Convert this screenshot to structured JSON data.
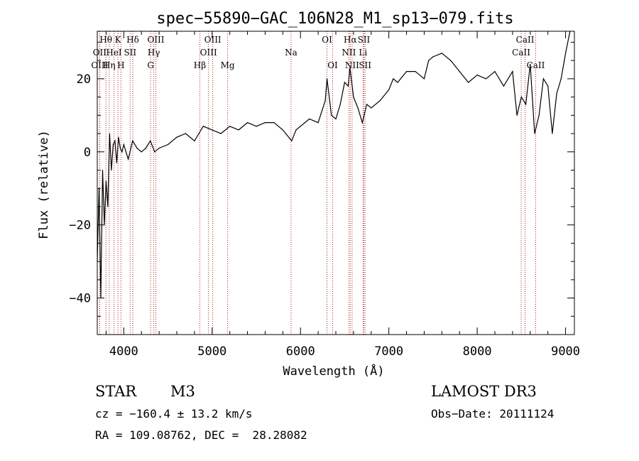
{
  "chart_data": {
    "type": "line",
    "title": "spec−55890−GAC_106N28_M1_sp13−079.fits",
    "xlabel": "Wavelength (Å)",
    "ylabel": "Flux (relative)",
    "xlim": [
      3700,
      9100
    ],
    "ylim": [
      -50,
      33
    ],
    "xticks": [
      4000,
      5000,
      6000,
      7000,
      8000,
      9000
    ],
    "yticks": [
      -40,
      -20,
      0,
      20
    ],
    "ytick_labels": [
      "−40",
      "−20",
      "0",
      "20"
    ],
    "series": [
      {
        "color": "#000000",
        "x": [
          3700,
          3720,
          3740,
          3760,
          3780,
          3800,
          3820,
          3840,
          3860,
          3880,
          3900,
          3920,
          3940,
          3960,
          3980,
          4000,
          4050,
          4100,
          4150,
          4200,
          4250,
          4300,
          4350,
          4400,
          4500,
          4600,
          4700,
          4800,
          4850,
          4900,
          5000,
          5100,
          5200,
          5300,
          5400,
          5500,
          5600,
          5700,
          5800,
          5900,
          5950,
          6000,
          6100,
          6200,
          6280,
          6300,
          6350,
          6400,
          6450,
          6500,
          6540,
          6560,
          6600,
          6650,
          6700,
          6750,
          6800,
          6900,
          7000,
          7050,
          7100,
          7200,
          7300,
          7400,
          7450,
          7500,
          7600,
          7700,
          7800,
          7900,
          8000,
          8100,
          8200,
          8300,
          8400,
          8450,
          8500,
          8550,
          8600,
          8650,
          8700,
          8750,
          8800,
          8850,
          8900,
          8950,
          9000,
          9050
        ],
        "y": [
          -30,
          -10,
          -40,
          -5,
          -20,
          -8,
          -15,
          5,
          -5,
          2,
          3,
          -3,
          4,
          1,
          0,
          2,
          -2,
          3,
          1,
          0,
          1,
          3,
          0,
          1,
          2,
          4,
          5,
          3,
          5,
          7,
          6,
          5,
          7,
          6,
          8,
          7,
          8,
          8,
          6,
          3,
          6,
          7,
          9,
          8,
          14,
          20,
          10,
          9,
          13,
          19,
          18,
          23,
          15,
          12,
          8,
          13,
          12,
          14,
          17,
          20,
          19,
          22,
          22,
          20,
          25,
          26,
          27,
          25,
          22,
          19,
          21,
          20,
          22,
          18,
          22,
          10,
          15,
          13,
          24,
          5,
          10,
          20,
          18,
          5,
          16,
          20,
          27,
          34
        ]
      }
    ],
    "emission_lines": [
      {
        "label": "Hθ",
        "wave": 3798,
        "row": 1
      },
      {
        "label": "K",
        "wave": 3934,
        "row": 1
      },
      {
        "label": "Hδ",
        "wave": 4102,
        "row": 1
      },
      {
        "label": "OIII",
        "wave": 4363,
        "row": 1
      },
      {
        "label": "OIII",
        "wave": 5007,
        "row": 1
      },
      {
        "label": "OI",
        "wave": 6300,
        "row": 1
      },
      {
        "label": "Hα",
        "wave": 6563,
        "row": 1
      },
      {
        "label": "SII",
        "wave": 6717,
        "row": 1
      },
      {
        "label": "CaII",
        "wave": 8542,
        "row": 1
      },
      {
        "label": "OII",
        "wave": 3727,
        "row": 2
      },
      {
        "label": "HeI",
        "wave": 3889,
        "row": 2
      },
      {
        "label": "SII",
        "wave": 4072,
        "row": 2
      },
      {
        "label": "Hγ",
        "wave": 4340,
        "row": 2
      },
      {
        "label": "OIII",
        "wave": 4959,
        "row": 2
      },
      {
        "label": "Na",
        "wave": 5893,
        "row": 2
      },
      {
        "label": "NII",
        "wave": 6548,
        "row": 2
      },
      {
        "label": "Li",
        "wave": 6708,
        "row": 2
      },
      {
        "label": "CaII",
        "wave": 8498,
        "row": 2
      },
      {
        "label": "OIII",
        "wave": 3727,
        "row": 3
      },
      {
        "label": "Hη",
        "wave": 3835,
        "row": 3
      },
      {
        "label": "H",
        "wave": 3968,
        "row": 3
      },
      {
        "label": "G",
        "wave": 4304,
        "row": 3
      },
      {
        "label": "Hβ",
        "wave": 4861,
        "row": 3
      },
      {
        "label": "Mg",
        "wave": 5175,
        "row": 3
      },
      {
        "label": "OI",
        "wave": 6364,
        "row": 3
      },
      {
        "label": "NII",
        "wave": 6584,
        "row": 3
      },
      {
        "label": "SII",
        "wave": 6731,
        "row": 3
      },
      {
        "label": "CaII",
        "wave": 8662,
        "row": 3
      }
    ]
  },
  "info": {
    "class_label": "STAR",
    "subclass": "M3",
    "survey": "LAMOST DR3",
    "cz": "cz = −160.4 ± 13.2 km/s",
    "obs_date": "Obs−Date: 20111124",
    "radec": "RA = 109.08762, DEC =  28.28082"
  }
}
